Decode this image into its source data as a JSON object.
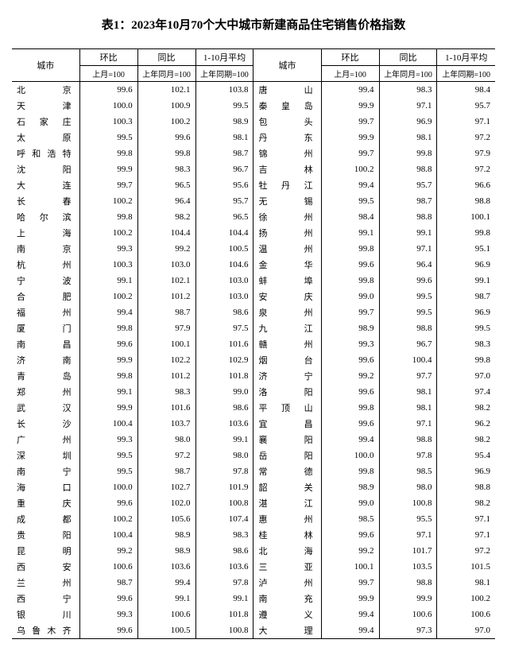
{
  "title": "表1：2023年10月70个大中城市新建商品住宅销售价格指数",
  "headers": {
    "city": "城市",
    "hb": "环比",
    "tb": "同比",
    "avg": "1-10月平均",
    "hb_sub": "上月=100",
    "tb_sub": "上年同月=100",
    "avg_sub": "上年同期=100"
  },
  "left": [
    {
      "c": "北京",
      "v": [
        "99.6",
        "102.1",
        "103.8"
      ]
    },
    {
      "c": "天津",
      "v": [
        "100.0",
        "100.9",
        "99.5"
      ]
    },
    {
      "c": "石家庄",
      "v": [
        "100.3",
        "100.2",
        "98.9"
      ]
    },
    {
      "c": "太原",
      "v": [
        "99.5",
        "99.6",
        "98.1"
      ]
    },
    {
      "c": "呼和浩特",
      "v": [
        "99.8",
        "99.8",
        "98.7"
      ]
    },
    {
      "c": "沈阳",
      "v": [
        "99.9",
        "98.3",
        "96.7"
      ]
    },
    {
      "c": "大连",
      "v": [
        "99.7",
        "96.5",
        "95.6"
      ]
    },
    {
      "c": "长春",
      "v": [
        "100.2",
        "96.4",
        "95.7"
      ]
    },
    {
      "c": "哈尔滨",
      "v": [
        "99.8",
        "98.2",
        "96.5"
      ]
    },
    {
      "c": "上海",
      "v": [
        "100.2",
        "104.4",
        "104.4"
      ]
    },
    {
      "c": "南京",
      "v": [
        "99.3",
        "99.2",
        "100.5"
      ]
    },
    {
      "c": "杭州",
      "v": [
        "100.3",
        "103.0",
        "104.6"
      ]
    },
    {
      "c": "宁波",
      "v": [
        "99.1",
        "102.1",
        "103.0"
      ]
    },
    {
      "c": "合肥",
      "v": [
        "100.2",
        "101.2",
        "103.0"
      ]
    },
    {
      "c": "福州",
      "v": [
        "99.4",
        "98.7",
        "98.6"
      ]
    },
    {
      "c": "厦门",
      "v": [
        "99.8",
        "97.9",
        "97.5"
      ]
    },
    {
      "c": "南昌",
      "v": [
        "99.6",
        "100.1",
        "101.6"
      ]
    },
    {
      "c": "济南",
      "v": [
        "99.9",
        "102.2",
        "102.9"
      ]
    },
    {
      "c": "青岛",
      "v": [
        "99.8",
        "101.2",
        "101.8"
      ]
    },
    {
      "c": "郑州",
      "v": [
        "99.1",
        "98.3",
        "99.0"
      ]
    },
    {
      "c": "武汉",
      "v": [
        "99.9",
        "101.6",
        "98.6"
      ]
    },
    {
      "c": "长沙",
      "v": [
        "100.4",
        "103.7",
        "103.6"
      ]
    },
    {
      "c": "广州",
      "v": [
        "99.3",
        "98.0",
        "99.1"
      ]
    },
    {
      "c": "深圳",
      "v": [
        "99.5",
        "97.2",
        "98.0"
      ]
    },
    {
      "c": "南宁",
      "v": [
        "99.5",
        "98.7",
        "97.8"
      ]
    },
    {
      "c": "海口",
      "v": [
        "100.0",
        "102.7",
        "101.9"
      ]
    },
    {
      "c": "重庆",
      "v": [
        "99.6",
        "102.0",
        "100.8"
      ]
    },
    {
      "c": "成都",
      "v": [
        "100.2",
        "105.6",
        "107.4"
      ]
    },
    {
      "c": "贵阳",
      "v": [
        "100.4",
        "98.9",
        "98.3"
      ]
    },
    {
      "c": "昆明",
      "v": [
        "99.2",
        "98.9",
        "98.6"
      ]
    },
    {
      "c": "西安",
      "v": [
        "100.6",
        "103.6",
        "103.6"
      ]
    },
    {
      "c": "兰州",
      "v": [
        "98.7",
        "99.4",
        "97.8"
      ]
    },
    {
      "c": "西宁",
      "v": [
        "99.6",
        "99.1",
        "99.1"
      ]
    },
    {
      "c": "银川",
      "v": [
        "99.3",
        "100.6",
        "101.8"
      ]
    },
    {
      "c": "乌鲁木齐",
      "v": [
        "99.6",
        "100.5",
        "100.8"
      ]
    }
  ],
  "right": [
    {
      "c": "唐山",
      "v": [
        "99.4",
        "98.3",
        "98.4"
      ]
    },
    {
      "c": "秦皇岛",
      "v": [
        "99.9",
        "97.1",
        "95.7"
      ]
    },
    {
      "c": "包头",
      "v": [
        "99.7",
        "96.9",
        "97.1"
      ]
    },
    {
      "c": "丹东",
      "v": [
        "99.9",
        "98.1",
        "97.2"
      ]
    },
    {
      "c": "锦州",
      "v": [
        "99.7",
        "99.8",
        "97.9"
      ]
    },
    {
      "c": "吉林",
      "v": [
        "100.2",
        "98.8",
        "97.2"
      ]
    },
    {
      "c": "牡丹江",
      "v": [
        "99.4",
        "95.7",
        "96.6"
      ]
    },
    {
      "c": "无锡",
      "v": [
        "99.5",
        "98.7",
        "98.8"
      ]
    },
    {
      "c": "徐州",
      "v": [
        "98.4",
        "98.8",
        "100.1"
      ]
    },
    {
      "c": "扬州",
      "v": [
        "99.1",
        "99.1",
        "99.8"
      ]
    },
    {
      "c": "温州",
      "v": [
        "99.8",
        "97.1",
        "95.1"
      ]
    },
    {
      "c": "金华",
      "v": [
        "99.6",
        "96.4",
        "96.9"
      ]
    },
    {
      "c": "蚌埠",
      "v": [
        "99.8",
        "99.6",
        "99.1"
      ]
    },
    {
      "c": "安庆",
      "v": [
        "99.0",
        "99.5",
        "98.7"
      ]
    },
    {
      "c": "泉州",
      "v": [
        "99.7",
        "99.5",
        "96.9"
      ]
    },
    {
      "c": "九江",
      "v": [
        "98.9",
        "98.8",
        "99.5"
      ]
    },
    {
      "c": "赣州",
      "v": [
        "99.3",
        "96.7",
        "98.3"
      ]
    },
    {
      "c": "烟台",
      "v": [
        "99.6",
        "100.4",
        "99.8"
      ]
    },
    {
      "c": "济宁",
      "v": [
        "99.2",
        "97.7",
        "97.0"
      ]
    },
    {
      "c": "洛阳",
      "v": [
        "99.6",
        "98.1",
        "97.4"
      ]
    },
    {
      "c": "平顶山",
      "v": [
        "99.8",
        "98.1",
        "98.2"
      ]
    },
    {
      "c": "宜昌",
      "v": [
        "99.6",
        "97.1",
        "96.2"
      ]
    },
    {
      "c": "襄阳",
      "v": [
        "99.4",
        "98.8",
        "98.2"
      ]
    },
    {
      "c": "岳阳",
      "v": [
        "100.0",
        "97.8",
        "95.4"
      ]
    },
    {
      "c": "常德",
      "v": [
        "99.8",
        "98.5",
        "96.9"
      ]
    },
    {
      "c": "韶关",
      "v": [
        "98.9",
        "98.0",
        "98.8"
      ]
    },
    {
      "c": "湛江",
      "v": [
        "99.0",
        "100.8",
        "98.2"
      ]
    },
    {
      "c": "惠州",
      "v": [
        "98.5",
        "95.5",
        "97.1"
      ]
    },
    {
      "c": "桂林",
      "v": [
        "99.6",
        "97.1",
        "97.1"
      ]
    },
    {
      "c": "北海",
      "v": [
        "99.2",
        "101.7",
        "97.2"
      ]
    },
    {
      "c": "三亚",
      "v": [
        "100.1",
        "103.5",
        "101.5"
      ]
    },
    {
      "c": "泸州",
      "v": [
        "99.7",
        "98.8",
        "98.1"
      ]
    },
    {
      "c": "南充",
      "v": [
        "99.9",
        "99.9",
        "100.2"
      ]
    },
    {
      "c": "遵义",
      "v": [
        "99.4",
        "100.6",
        "100.6"
      ]
    },
    {
      "c": "大理",
      "v": [
        "99.4",
        "97.3",
        "97.0"
      ]
    }
  ]
}
